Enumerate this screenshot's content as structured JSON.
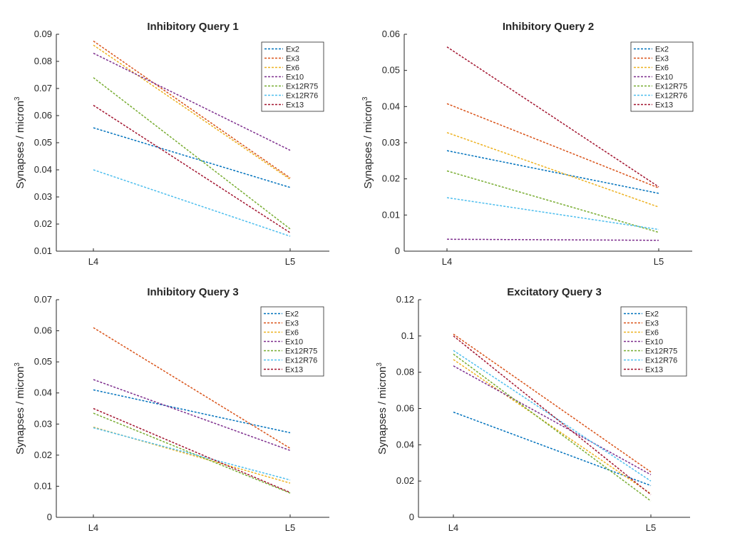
{
  "chart_data": [
    {
      "type": "line",
      "title": "Inhibitory Query 1",
      "ylabel": "Synapses / micron",
      "ylabel_superscript": "3",
      "categories": [
        "L4",
        "L5"
      ],
      "ylim": [
        0.01,
        0.09
      ],
      "yticks": [
        "0.01",
        "0.02",
        "0.03",
        "0.04",
        "0.05",
        "0.06",
        "0.07",
        "0.08",
        "0.09"
      ],
      "legend_position": "top-right",
      "series": [
        {
          "name": "Ex2",
          "color": "#0072BD",
          "values": [
            0.0555,
            0.0335
          ]
        },
        {
          "name": "Ex3",
          "color": "#D95319",
          "values": [
            0.0875,
            0.037
          ]
        },
        {
          "name": "Ex6",
          "color": "#EDB120",
          "values": [
            0.086,
            0.0365
          ]
        },
        {
          "name": "Ex10",
          "color": "#7E2F8E",
          "values": [
            0.083,
            0.0472
          ]
        },
        {
          "name": "Ex12R75",
          "color": "#77AC30",
          "values": [
            0.074,
            0.0182
          ]
        },
        {
          "name": "Ex12R76",
          "color": "#4DBEEE",
          "values": [
            0.04,
            0.0155
          ]
        },
        {
          "name": "Ex13",
          "color": "#A2142F",
          "values": [
            0.0638,
            0.0168
          ]
        }
      ]
    },
    {
      "type": "line",
      "title": "Inhibitory Query 2",
      "ylabel": "Synapses / micron",
      "ylabel_superscript": "3",
      "categories": [
        "L4",
        "L5"
      ],
      "ylim": [
        0,
        0.06
      ],
      "yticks": [
        "0",
        "0.01",
        "0.02",
        "0.03",
        "0.04",
        "0.05",
        "0.06"
      ],
      "legend_position": "top-right",
      "series": [
        {
          "name": "Ex2",
          "color": "#0072BD",
          "values": [
            0.0278,
            0.016
          ]
        },
        {
          "name": "Ex3",
          "color": "#D95319",
          "values": [
            0.0408,
            0.0175
          ]
        },
        {
          "name": "Ex6",
          "color": "#EDB120",
          "values": [
            0.0328,
            0.0122
          ]
        },
        {
          "name": "Ex10",
          "color": "#7E2F8E",
          "values": [
            0.0033,
            0.003
          ]
        },
        {
          "name": "Ex12R75",
          "color": "#77AC30",
          "values": [
            0.0222,
            0.0052
          ]
        },
        {
          "name": "Ex12R76",
          "color": "#4DBEEE",
          "values": [
            0.0148,
            0.006
          ]
        },
        {
          "name": "Ex13",
          "color": "#A2142F",
          "values": [
            0.0565,
            0.0178
          ]
        }
      ]
    },
    {
      "type": "line",
      "title": "Inhibitory Query 3",
      "ylabel": "Synapses / micron",
      "ylabel_superscript": "3",
      "categories": [
        "L4",
        "L5"
      ],
      "ylim": [
        0,
        0.07
      ],
      "yticks": [
        "0",
        "0.01",
        "0.02",
        "0.03",
        "0.04",
        "0.05",
        "0.06",
        "0.07"
      ],
      "legend_position": "top-right",
      "series": [
        {
          "name": "Ex2",
          "color": "#0072BD",
          "values": [
            0.041,
            0.0272
          ]
        },
        {
          "name": "Ex3",
          "color": "#D95319",
          "values": [
            0.061,
            0.0222
          ]
        },
        {
          "name": "Ex6",
          "color": "#EDB120",
          "values": [
            0.029,
            0.011
          ]
        },
        {
          "name": "Ex10",
          "color": "#7E2F8E",
          "values": [
            0.0443,
            0.0215
          ]
        },
        {
          "name": "Ex12R75",
          "color": "#77AC30",
          "values": [
            0.0335,
            0.0078
          ]
        },
        {
          "name": "Ex12R76",
          "color": "#4DBEEE",
          "values": [
            0.0288,
            0.012
          ]
        },
        {
          "name": "Ex13",
          "color": "#A2142F",
          "values": [
            0.035,
            0.008
          ]
        }
      ]
    },
    {
      "type": "line",
      "title": "Excitatory Query 3",
      "ylabel": "Synapses / micron",
      "ylabel_superscript": "3",
      "categories": [
        "L4",
        "L5"
      ],
      "ylim": [
        0,
        0.12
      ],
      "yticks": [
        "0",
        "0.02",
        "0.04",
        "0.06",
        "0.08",
        "0.1",
        "0.12"
      ],
      "legend_position": "top-right",
      "series": [
        {
          "name": "Ex2",
          "color": "#0072BD",
          "values": [
            0.058,
            0.0175
          ]
        },
        {
          "name": "Ex3",
          "color": "#D95319",
          "values": [
            0.101,
            0.025
          ]
        },
        {
          "name": "Ex6",
          "color": "#EDB120",
          "values": [
            0.087,
            0.013
          ]
        },
        {
          "name": "Ex10",
          "color": "#7E2F8E",
          "values": [
            0.0835,
            0.0235
          ]
        },
        {
          "name": "Ex12R75",
          "color": "#77AC30",
          "values": [
            0.09,
            0.009
          ]
        },
        {
          "name": "Ex12R76",
          "color": "#4DBEEE",
          "values": [
            0.092,
            0.02
          ]
        },
        {
          "name": "Ex13",
          "color": "#A2142F",
          "values": [
            0.1,
            0.0125
          ]
        }
      ]
    }
  ]
}
